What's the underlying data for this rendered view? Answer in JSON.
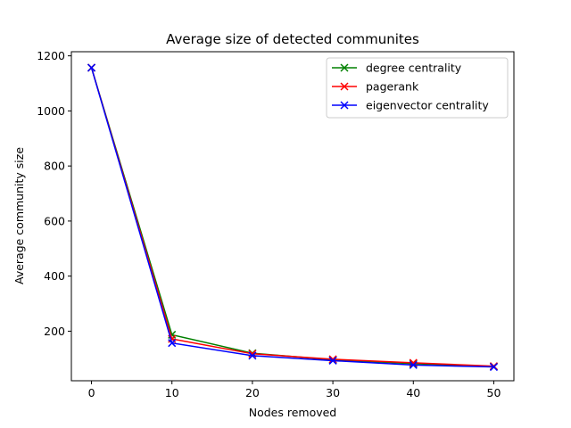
{
  "chart_data": {
    "type": "line",
    "title": "Average size of detected communites",
    "xlabel": "Nodes removed",
    "ylabel": "Average community size",
    "x": [
      0,
      10,
      20,
      30,
      40,
      50
    ],
    "xlim": [
      -2.5,
      52.5
    ],
    "ylim": [
      20,
      1215
    ],
    "xticks": [
      0,
      10,
      20,
      30,
      40,
      50
    ],
    "yticks": [
      200,
      400,
      600,
      800,
      1000,
      1200
    ],
    "grid": false,
    "legend_position": "top-right",
    "marker": "x",
    "series": [
      {
        "name": "degree centrality",
        "color": "#008000",
        "values": [
          1157,
          187,
          120,
          96,
          82,
          72
        ]
      },
      {
        "name": "pagerank",
        "color": "#ff0000",
        "values": [
          1157,
          172,
          118,
          98,
          85,
          73
        ]
      },
      {
        "name": "eigenvector centrality",
        "color": "#0000ff",
        "values": [
          1157,
          157,
          111,
          93,
          77,
          70
        ]
      }
    ]
  }
}
